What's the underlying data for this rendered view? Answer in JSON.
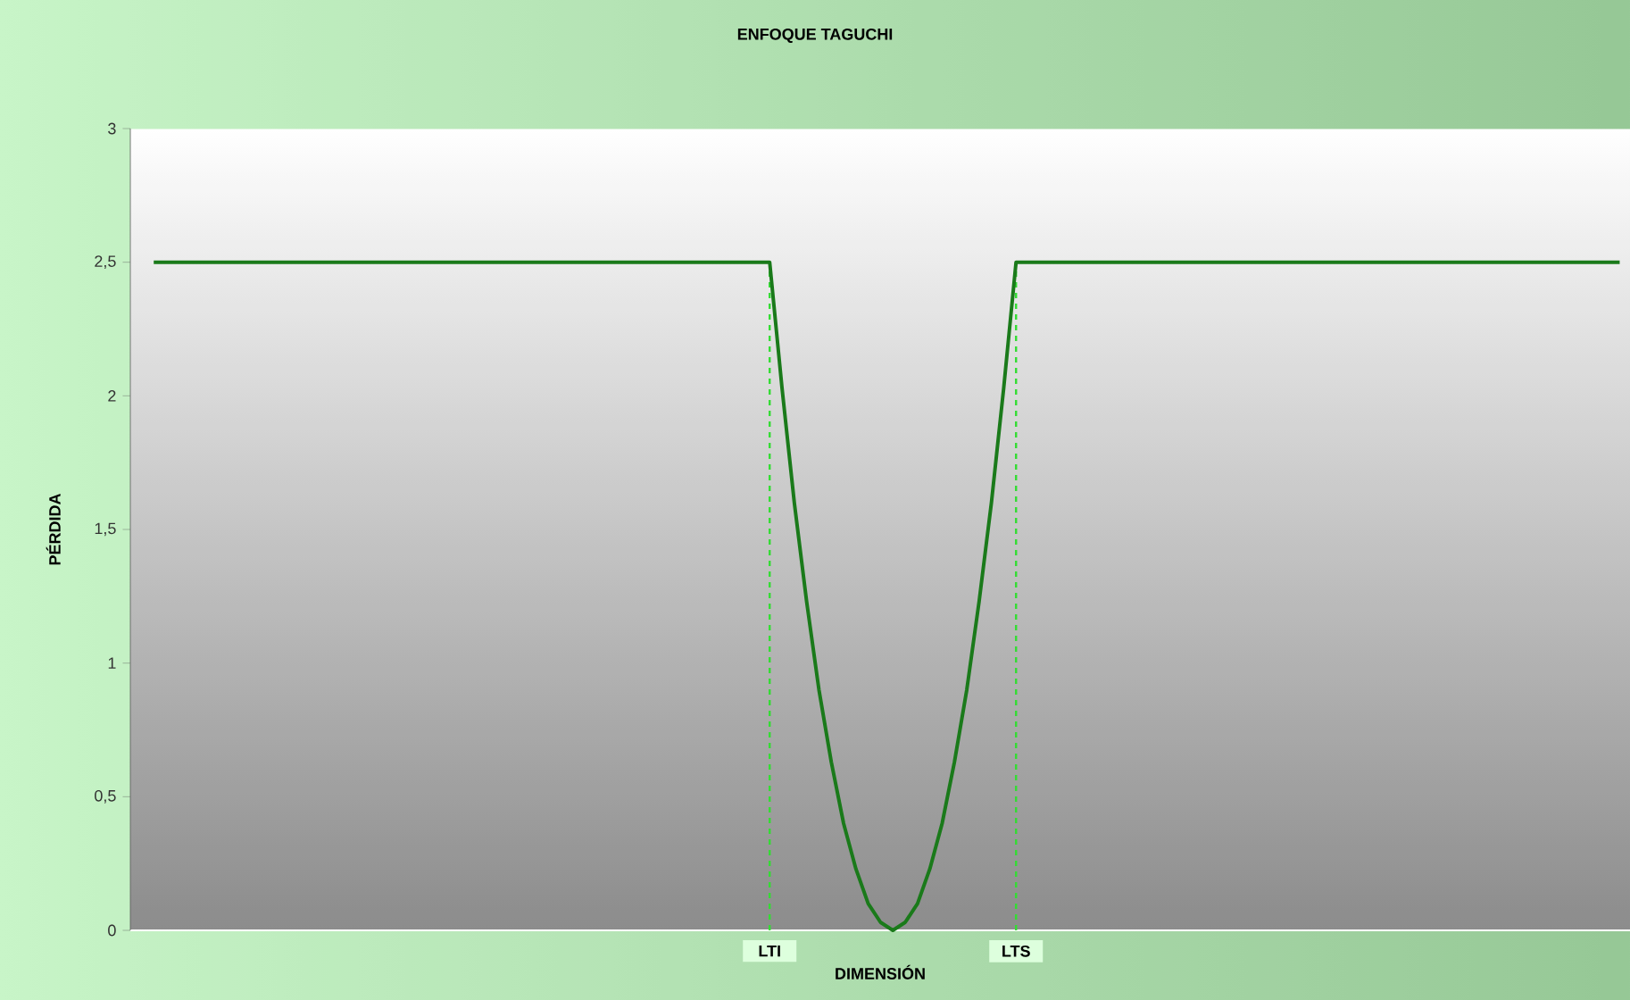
{
  "chart_data": {
    "type": "line",
    "title": "ENFOQUE TAGUCHI",
    "xlabel": "DIMENSIÓN",
    "ylabel": "PÉRDIDA",
    "categories": [
      null,
      null,
      null,
      null,
      null,
      null,
      null,
      null,
      null,
      null,
      null,
      null,
      null,
      null,
      null,
      null,
      null,
      null,
      null,
      null,
      null,
      null,
      null,
      null,
      null,
      null,
      null,
      null,
      null,
      null,
      null,
      null,
      null,
      null,
      null,
      null,
      null,
      null,
      null,
      null,
      null,
      null,
      null,
      null,
      null,
      null,
      null,
      null,
      null,
      null,
      "LTI",
      null,
      null,
      null,
      null,
      null,
      null,
      null,
      null,
      null,
      null,
      null,
      null,
      null,
      null,
      null,
      null,
      null,
      null,
      null,
      "LTS",
      null,
      null,
      null,
      null,
      null,
      null,
      null,
      null,
      null,
      null,
      null,
      null,
      null,
      null,
      null,
      null,
      null,
      null,
      null,
      null,
      null,
      null,
      null,
      null,
      null,
      null,
      null,
      null,
      null,
      null,
      null,
      null,
      null,
      null,
      null,
      null,
      null,
      null,
      null,
      null,
      null,
      null,
      null,
      null,
      null,
      null,
      null,
      null,
      null
    ],
    "series": [
      {
        "color": "#1a7a1a",
        "values": [
          2.5,
          2.5,
          2.5,
          2.5,
          2.5,
          2.5,
          2.5,
          2.5,
          2.5,
          2.5,
          2.5,
          2.5,
          2.5,
          2.5,
          2.5,
          2.5,
          2.5,
          2.5,
          2.5,
          2.5,
          2.5,
          2.5,
          2.5,
          2.5,
          2.5,
          2.5,
          2.5,
          2.5,
          2.5,
          2.5,
          2.5,
          2.5,
          2.5,
          2.5,
          2.5,
          2.5,
          2.5,
          2.5,
          2.5,
          2.5,
          2.5,
          2.5,
          2.5,
          2.5,
          2.5,
          2.5,
          2.5,
          2.5,
          2.5,
          2.5,
          2.5,
          2.03,
          1.6,
          1.23,
          0.9,
          0.63,
          0.4,
          0.23,
          0.1,
          0.03,
          0,
          0.03,
          0.1,
          0.23,
          0.4,
          0.63,
          0.9,
          1.23,
          1.6,
          2.03,
          2.5,
          2.5,
          2.5,
          2.5,
          2.5,
          2.5,
          2.5,
          2.5,
          2.5,
          2.5,
          2.5,
          2.5,
          2.5,
          2.5,
          2.5,
          2.5,
          2.5,
          2.5,
          2.5,
          2.5,
          2.5,
          2.5,
          2.5,
          2.5,
          2.5,
          2.5,
          2.5,
          2.5,
          2.5,
          2.5,
          2.5,
          2.5,
          2.5,
          2.5,
          2.5,
          2.5,
          2.5,
          2.5,
          2.5,
          2.5,
          2.5,
          2.5,
          2.5,
          2.5,
          2.5,
          2.5,
          2.5,
          2.5,
          2.5,
          2.5
        ]
      }
    ],
    "ylim": [
      0,
      3
    ],
    "yticks": [
      0,
      {
        "value": 0.5,
        "label": "0,5"
      },
      1,
      {
        "value": 1.5,
        "label": "1,5"
      },
      2,
      {
        "value": 2.5,
        "label": "2,5"
      },
      3
    ],
    "ref_lines": [
      {
        "axis": "x",
        "value": "LTI",
        "color": "#33dd33",
        "line_style": "dashed"
      },
      {
        "axis": "x",
        "value": "LTS",
        "color": "#33dd33",
        "line_style": "dashed"
      }
    ],
    "marker": "none",
    "line_style": "solid",
    "grid": false
  }
}
